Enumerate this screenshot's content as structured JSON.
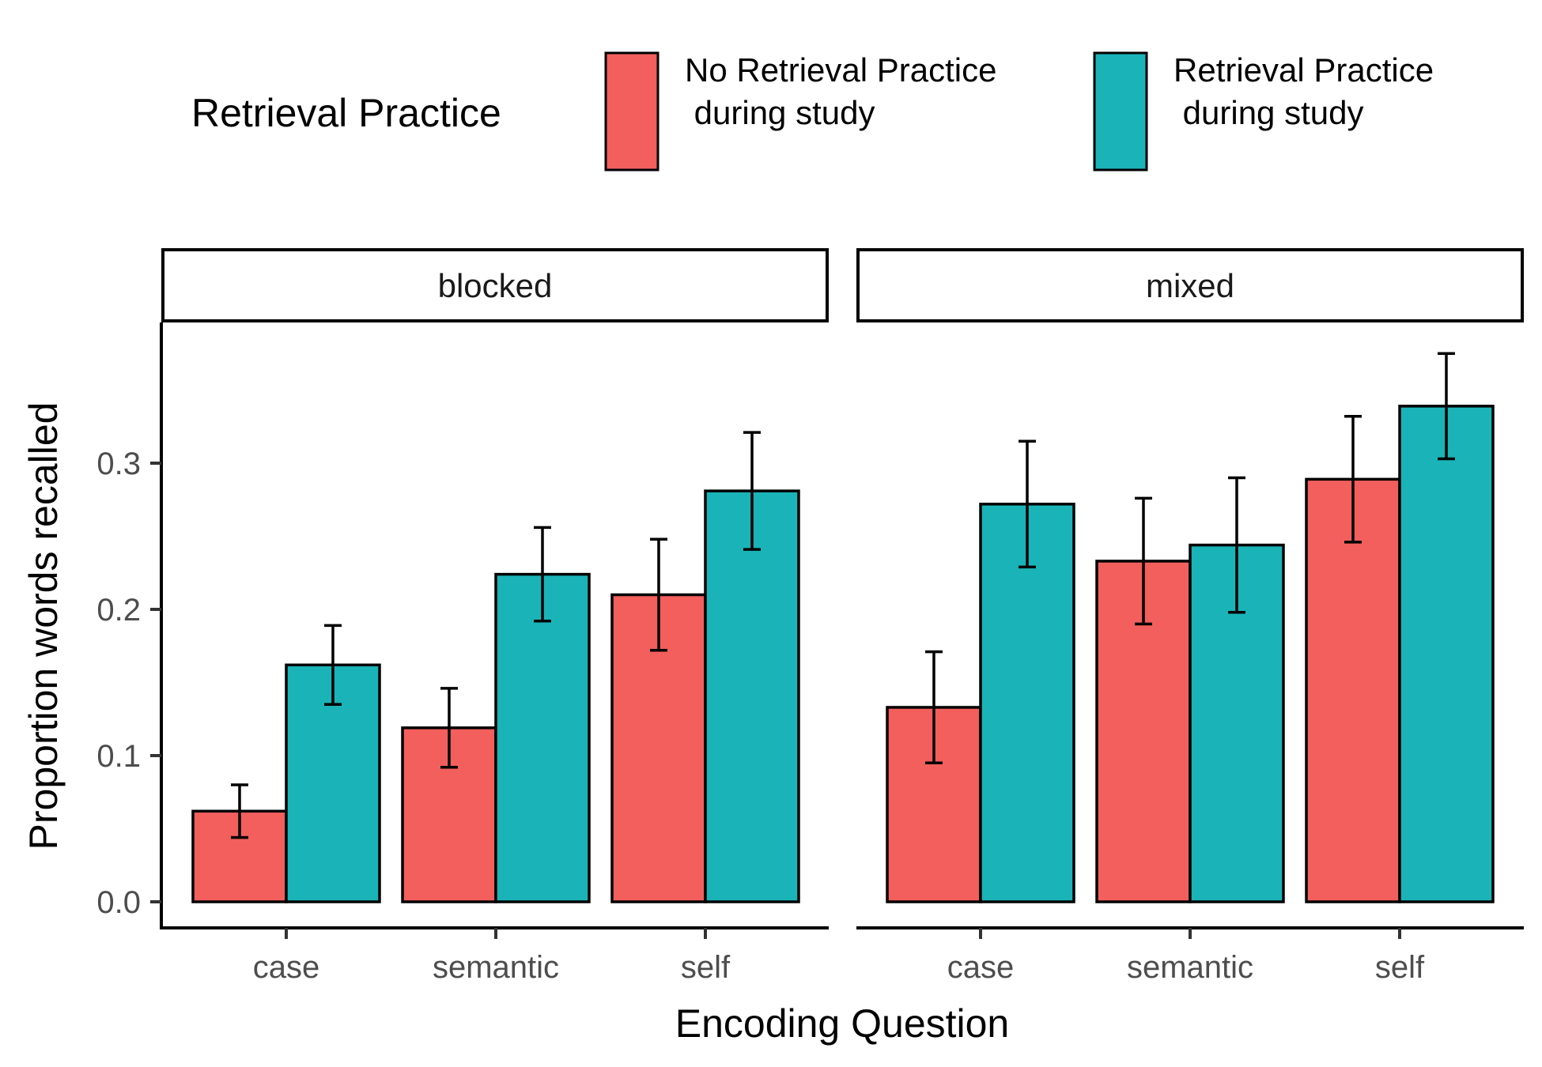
{
  "chart_data": {
    "type": "bar",
    "categories": [
      "case",
      "semantic",
      "self"
    ],
    "xlabel": "Encoding Question",
    "ylabel": "Proportion words recalled",
    "yticks": [
      0.0,
      0.1,
      0.2,
      0.3
    ],
    "ytick_labels": [
      "0.0",
      "0.1",
      "0.2",
      "0.3"
    ],
    "ylim": [
      0,
      0.39
    ],
    "legend": {
      "title": "Retrieval Practice",
      "position": "top",
      "entries": [
        {
          "line1": "No Retrieval Practice",
          "line2": " during study",
          "color": "#F25F5C"
        },
        {
          "line1": "Retrieval Practice",
          "line2": " during study",
          "color": "#1AB4B8"
        }
      ]
    },
    "panels": [
      {
        "label": "blocked",
        "series": [
          {
            "name": "No Retrieval Practice during study",
            "color": "#F25F5C",
            "values": [
              0.062,
              0.119,
              0.21
            ],
            "err_low": [
              0.044,
              0.092,
              0.172
            ],
            "err_high": [
              0.08,
              0.146,
              0.248
            ]
          },
          {
            "name": "Retrieval Practice during study",
            "color": "#1AB4B8",
            "values": [
              0.162,
              0.224,
              0.281
            ],
            "err_low": [
              0.135,
              0.192,
              0.241
            ],
            "err_high": [
              0.189,
              0.256,
              0.321
            ]
          }
        ]
      },
      {
        "label": "mixed",
        "series": [
          {
            "name": "No Retrieval Practice during study",
            "color": "#F25F5C",
            "values": [
              0.133,
              0.233,
              0.289
            ],
            "err_low": [
              0.095,
              0.19,
              0.246
            ],
            "err_high": [
              0.171,
              0.276,
              0.332
            ]
          },
          {
            "name": "Retrieval Practice during study",
            "color": "#1AB4B8",
            "values": [
              0.272,
              0.244,
              0.339
            ],
            "err_low": [
              0.229,
              0.198,
              0.303
            ],
            "err_high": [
              0.315,
              0.29,
              0.375
            ]
          }
        ]
      }
    ]
  }
}
